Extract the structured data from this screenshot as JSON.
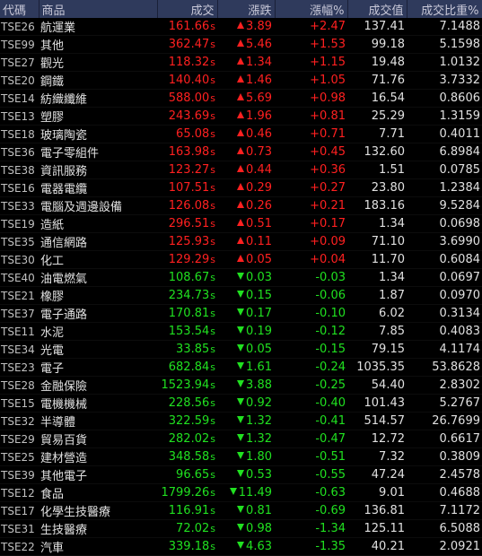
{
  "header": {
    "code": "代碼",
    "name": "商品",
    "price": "成交",
    "change": "漲跌",
    "pct": "漲幅%",
    "value": "成交值",
    "ratio": "成交比重%"
  },
  "price_suffix": "s",
  "colors": {
    "up": "#ff2020",
    "down": "#20e020",
    "header_bg": "#2f3a5c"
  },
  "rows": [
    {
      "code": "TSE26",
      "name": "航運業",
      "price": "161.66",
      "dir": "up",
      "change": "3.89",
      "pct": "+2.47",
      "value": "137.41",
      "ratio": "7.1488"
    },
    {
      "code": "TSE99",
      "name": "其他",
      "price": "362.47",
      "dir": "up",
      "change": "5.46",
      "pct": "+1.53",
      "value": "99.18",
      "ratio": "5.1598"
    },
    {
      "code": "TSE27",
      "name": "觀光",
      "price": "118.32",
      "dir": "up",
      "change": "1.34",
      "pct": "+1.15",
      "value": "19.48",
      "ratio": "1.0132"
    },
    {
      "code": "TSE20",
      "name": "鋼鐵",
      "price": "140.40",
      "dir": "up",
      "change": "1.46",
      "pct": "+1.05",
      "value": "71.76",
      "ratio": "3.7332"
    },
    {
      "code": "TSE14",
      "name": "紡織纖維",
      "price": "588.00",
      "dir": "up",
      "change": "5.69",
      "pct": "+0.98",
      "value": "16.54",
      "ratio": "0.8606"
    },
    {
      "code": "TSE13",
      "name": "塑膠",
      "price": "243.69",
      "dir": "up",
      "change": "1.96",
      "pct": "+0.81",
      "value": "25.29",
      "ratio": "1.3159"
    },
    {
      "code": "TSE18",
      "name": "玻璃陶瓷",
      "price": "65.08",
      "dir": "up",
      "change": "0.46",
      "pct": "+0.71",
      "value": "7.71",
      "ratio": "0.4011"
    },
    {
      "code": "TSE36",
      "name": "電子零組件",
      "price": "163.98",
      "dir": "up",
      "change": "0.73",
      "pct": "+0.45",
      "value": "132.60",
      "ratio": "6.8984"
    },
    {
      "code": "TSE38",
      "name": "資訊服務",
      "price": "123.27",
      "dir": "up",
      "change": "0.44",
      "pct": "+0.36",
      "value": "1.51",
      "ratio": "0.0785"
    },
    {
      "code": "TSE16",
      "name": "電器電纜",
      "price": "107.51",
      "dir": "up",
      "change": "0.29",
      "pct": "+0.27",
      "value": "23.80",
      "ratio": "1.2384"
    },
    {
      "code": "TSE33",
      "name": "電腦及週邊設備",
      "price": "126.08",
      "dir": "up",
      "change": "0.26",
      "pct": "+0.21",
      "value": "183.16",
      "ratio": "9.5284"
    },
    {
      "code": "TSE19",
      "name": "造紙",
      "price": "296.51",
      "dir": "up",
      "change": "0.51",
      "pct": "+0.17",
      "value": "1.34",
      "ratio": "0.0698"
    },
    {
      "code": "TSE35",
      "name": "通信網路",
      "price": "125.93",
      "dir": "up",
      "change": "0.11",
      "pct": "+0.09",
      "value": "71.10",
      "ratio": "3.6990"
    },
    {
      "code": "TSE30",
      "name": "化工",
      "price": "129.29",
      "dir": "up",
      "change": "0.05",
      "pct": "+0.04",
      "value": "11.70",
      "ratio": "0.6084"
    },
    {
      "code": "TSE40",
      "name": "油電燃氣",
      "price": "108.67",
      "dir": "down",
      "change": "0.03",
      "pct": "-0.03",
      "value": "1.34",
      "ratio": "0.0697"
    },
    {
      "code": "TSE21",
      "name": "橡膠",
      "price": "234.73",
      "dir": "down",
      "change": "0.15",
      "pct": "-0.06",
      "value": "1.87",
      "ratio": "0.0970"
    },
    {
      "code": "TSE37",
      "name": "電子通路",
      "price": "170.81",
      "dir": "down",
      "change": "0.17",
      "pct": "-0.10",
      "value": "6.02",
      "ratio": "0.3134"
    },
    {
      "code": "TSE11",
      "name": "水泥",
      "price": "153.54",
      "dir": "down",
      "change": "0.19",
      "pct": "-0.12",
      "value": "7.85",
      "ratio": "0.4083"
    },
    {
      "code": "TSE34",
      "name": "光電",
      "price": "33.85",
      "dir": "down",
      "change": "0.05",
      "pct": "-0.15",
      "value": "79.15",
      "ratio": "4.1174"
    },
    {
      "code": "TSE23",
      "name": "電子",
      "price": "682.84",
      "dir": "down",
      "change": "1.61",
      "pct": "-0.24",
      "value": "1035.35",
      "ratio": "53.8628"
    },
    {
      "code": "TSE28",
      "name": "金融保險",
      "price": "1523.94",
      "dir": "down",
      "change": "3.88",
      "pct": "-0.25",
      "value": "54.40",
      "ratio": "2.8302"
    },
    {
      "code": "TSE15",
      "name": "電機機械",
      "price": "228.56",
      "dir": "down",
      "change": "0.92",
      "pct": "-0.40",
      "value": "101.43",
      "ratio": "5.2767"
    },
    {
      "code": "TSE32",
      "name": "半導體",
      "price": "322.59",
      "dir": "down",
      "change": "1.32",
      "pct": "-0.41",
      "value": "514.57",
      "ratio": "26.7699"
    },
    {
      "code": "TSE29",
      "name": "貿易百貨",
      "price": "282.02",
      "dir": "down",
      "change": "1.32",
      "pct": "-0.47",
      "value": "12.72",
      "ratio": "0.6617"
    },
    {
      "code": "TSE25",
      "name": "建材營造",
      "price": "348.58",
      "dir": "down",
      "change": "1.80",
      "pct": "-0.51",
      "value": "7.32",
      "ratio": "0.3809"
    },
    {
      "code": "TSE39",
      "name": "其他電子",
      "price": "96.65",
      "dir": "down",
      "change": "0.53",
      "pct": "-0.55",
      "value": "47.24",
      "ratio": "2.4578"
    },
    {
      "code": "TSE12",
      "name": "食品",
      "price": "1799.26",
      "dir": "down",
      "change": "11.49",
      "pct": "-0.63",
      "value": "9.01",
      "ratio": "0.4688"
    },
    {
      "code": "TSE17",
      "name": "化學生技醫療",
      "price": "116.91",
      "dir": "down",
      "change": "0.81",
      "pct": "-0.69",
      "value": "136.81",
      "ratio": "7.1172"
    },
    {
      "code": "TSE31",
      "name": "生技醫療",
      "price": "72.02",
      "dir": "down",
      "change": "0.98",
      "pct": "-1.34",
      "value": "125.11",
      "ratio": "6.5088"
    },
    {
      "code": "TSE22",
      "name": "汽車",
      "price": "339.18",
      "dir": "down",
      "change": "4.63",
      "pct": "-1.35",
      "value": "40.21",
      "ratio": "2.0921"
    }
  ]
}
